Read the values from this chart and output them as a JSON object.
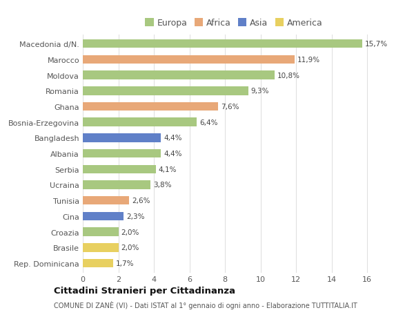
{
  "categories": [
    "Rep. Dominicana",
    "Brasile",
    "Croazia",
    "Cina",
    "Tunisia",
    "Ucraina",
    "Serbia",
    "Albania",
    "Bangladesh",
    "Bosnia-Erzegovina",
    "Ghana",
    "Romania",
    "Moldova",
    "Marocco",
    "Macedonia d/N."
  ],
  "values": [
    1.7,
    2.0,
    2.0,
    2.3,
    2.6,
    3.8,
    4.1,
    4.4,
    4.4,
    6.4,
    7.6,
    9.3,
    10.8,
    11.9,
    15.7
  ],
  "labels": [
    "1,7%",
    "2,0%",
    "2,0%",
    "2,3%",
    "2,6%",
    "3,8%",
    "4,1%",
    "4,4%",
    "4,4%",
    "6,4%",
    "7,6%",
    "9,3%",
    "10,8%",
    "11,9%",
    "15,7%"
  ],
  "continents": [
    "America",
    "America",
    "Europa",
    "Asia",
    "Africa",
    "Europa",
    "Europa",
    "Europa",
    "Asia",
    "Europa",
    "Africa",
    "Europa",
    "Europa",
    "Africa",
    "Europa"
  ],
  "colors": {
    "Europa": "#a8c880",
    "Africa": "#e8a878",
    "Asia": "#6080c8",
    "America": "#e8d060"
  },
  "legend_labels": [
    "Europa",
    "Africa",
    "Asia",
    "America"
  ],
  "legend_colors": [
    "#a8c880",
    "#e8a878",
    "#6080c8",
    "#e8d060"
  ],
  "title": "Cittadini Stranieri per Cittadinanza",
  "subtitle": "COMUNE DI ZANÈ (VI) - Dati ISTAT al 1° gennaio di ogni anno - Elaborazione TUTTITALIA.IT",
  "xlim": [
    0,
    17
  ],
  "xticks": [
    0,
    2,
    4,
    6,
    8,
    10,
    12,
    14,
    16
  ],
  "background_color": "#ffffff",
  "grid_color": "#e0e0e0"
}
